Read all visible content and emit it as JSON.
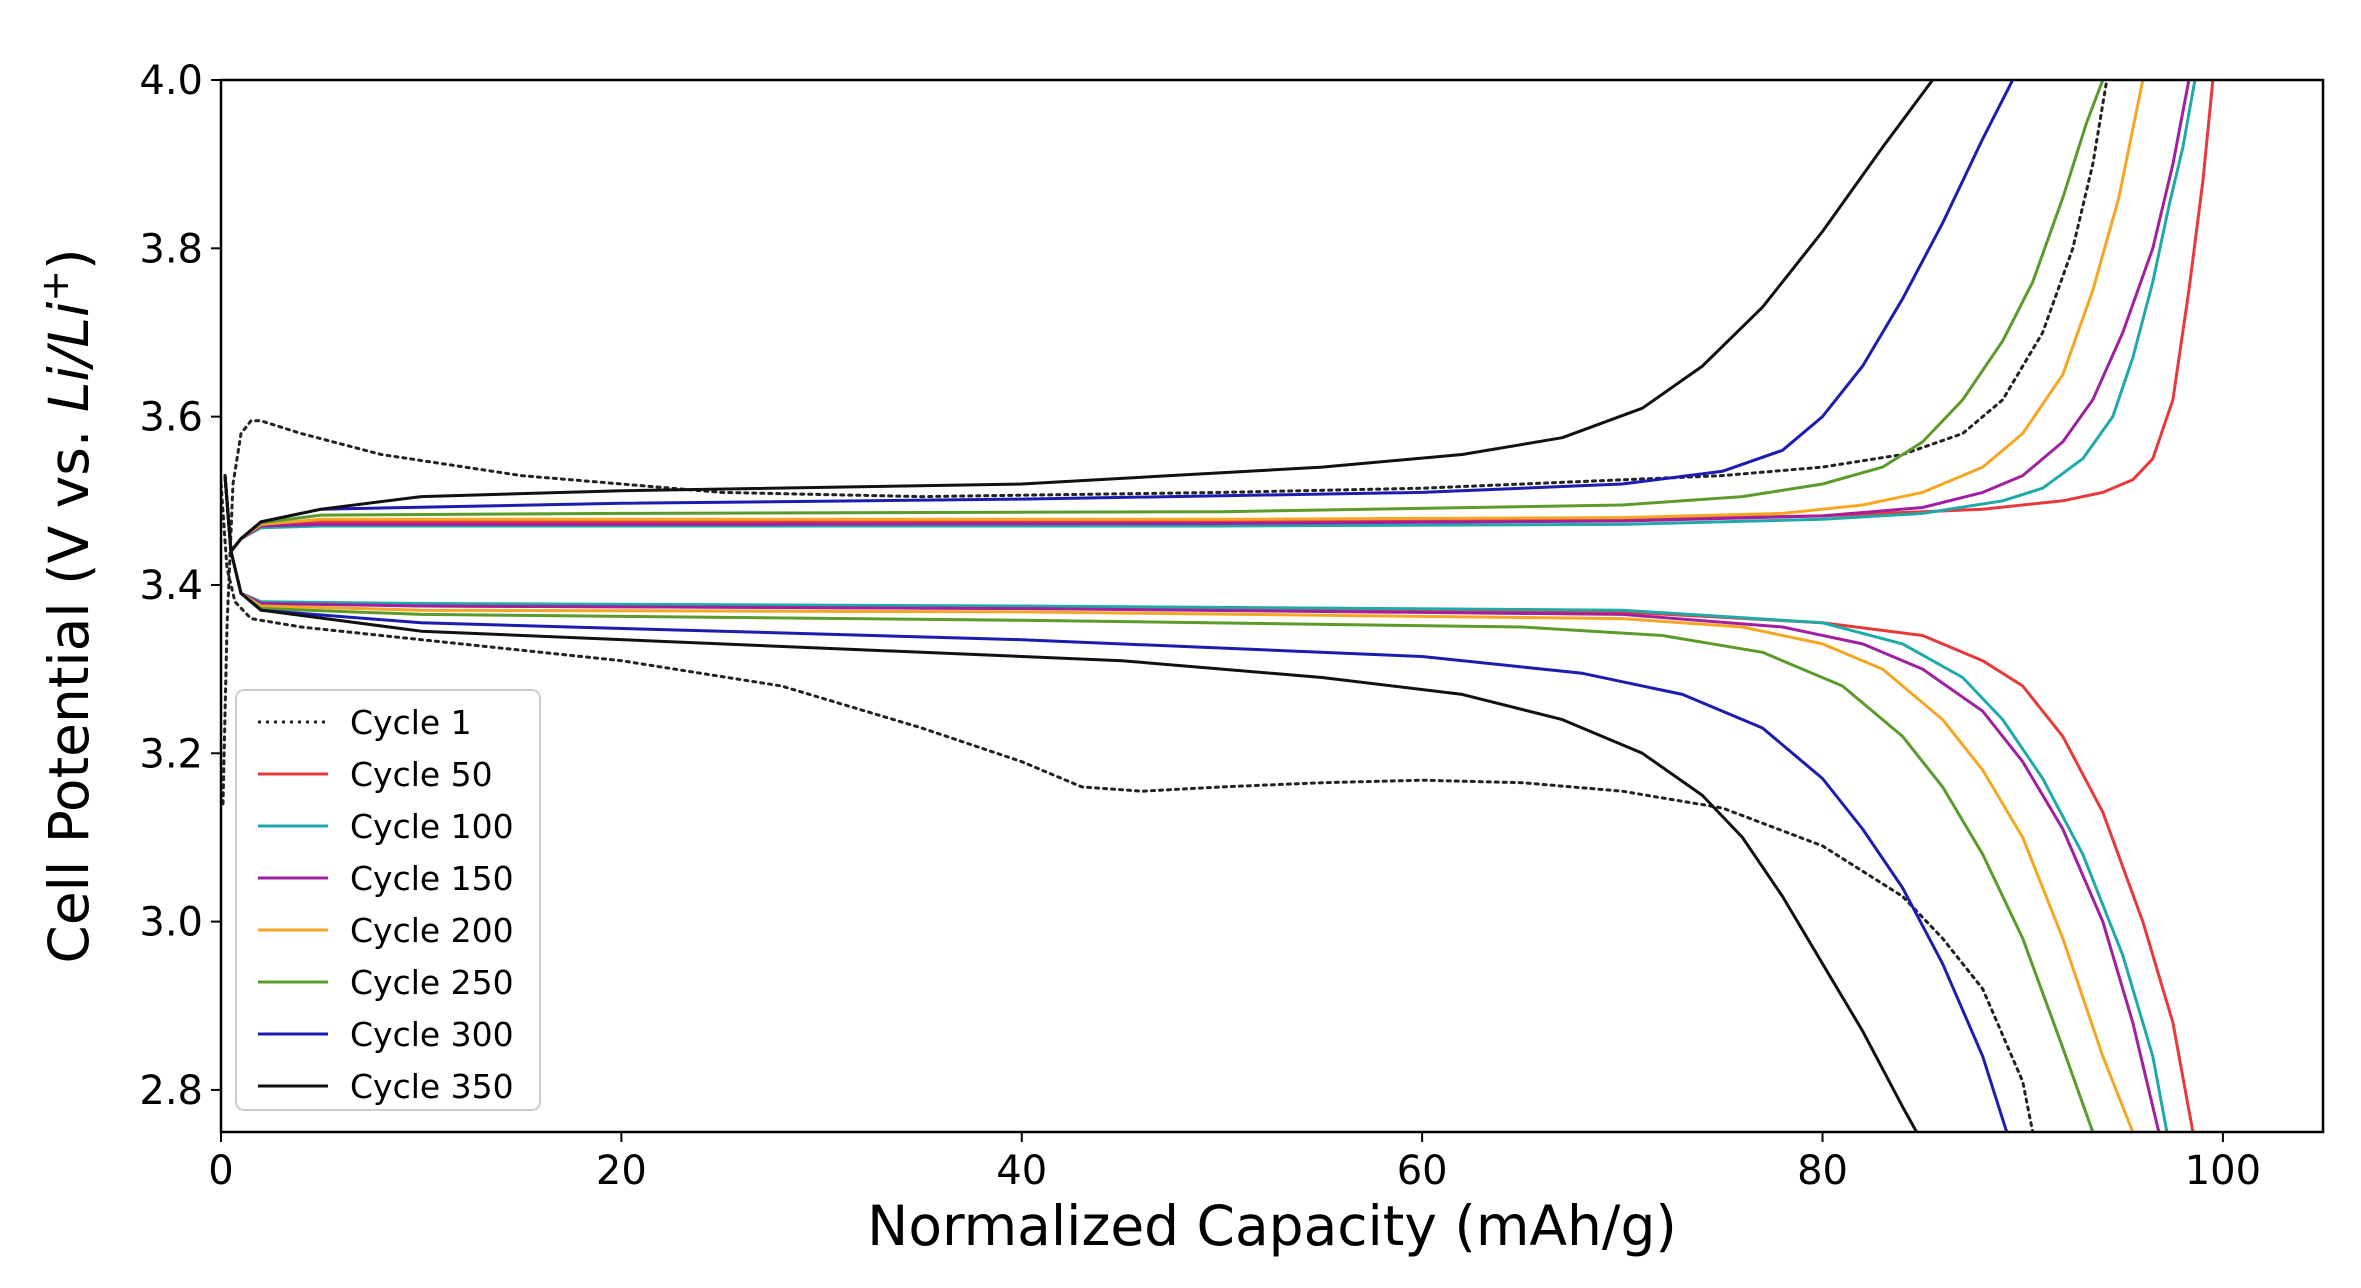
{
  "chart_data": {
    "type": "line",
    "title": "",
    "xlabel": "Normalized Capacity (mAh/g)",
    "ylabel_parts": [
      "Cell Potential (V vs. ",
      "Li/Li",
      "+",
      ")"
    ],
    "xlim": [
      0,
      105
    ],
    "ylim": [
      2.75,
      4.0
    ],
    "xticks": [
      0,
      20,
      40,
      60,
      80,
      100
    ],
    "yticks": [
      2.8,
      3.0,
      3.2,
      3.4,
      3.6,
      3.8,
      4.0
    ],
    "xtick_labels": [
      "0",
      "20",
      "40",
      "60",
      "80",
      "100"
    ],
    "ytick_labels": [
      "2.8",
      "3.0",
      "3.2",
      "3.4",
      "3.6",
      "3.8",
      "4.0"
    ],
    "grid": false,
    "legend_position": "lower-left",
    "series": [
      {
        "name": "Cycle 1",
        "color": "#222222",
        "dash": "dotted",
        "charge": [
          [
            0.1,
            3.14
          ],
          [
            0.3,
            3.35
          ],
          [
            0.6,
            3.52
          ],
          [
            1,
            3.58
          ],
          [
            1.5,
            3.595
          ],
          [
            2,
            3.595
          ],
          [
            4,
            3.58
          ],
          [
            8,
            3.555
          ],
          [
            15,
            3.53
          ],
          [
            25,
            3.51
          ],
          [
            35,
            3.505
          ],
          [
            50,
            3.51
          ],
          [
            60,
            3.515
          ],
          [
            70,
            3.525
          ],
          [
            75,
            3.53
          ],
          [
            80,
            3.54
          ],
          [
            84,
            3.555
          ],
          [
            87,
            3.58
          ],
          [
            89,
            3.62
          ],
          [
            91,
            3.7
          ],
          [
            92.5,
            3.8
          ],
          [
            93.5,
            3.9
          ],
          [
            94.2,
            4.0
          ]
        ],
        "discharge": [
          [
            0,
            3.52
          ],
          [
            0.3,
            3.42
          ],
          [
            0.7,
            3.38
          ],
          [
            1.5,
            3.36
          ],
          [
            4,
            3.35
          ],
          [
            10,
            3.335
          ],
          [
            20,
            3.31
          ],
          [
            28,
            3.28
          ],
          [
            35,
            3.23
          ],
          [
            40,
            3.19
          ],
          [
            43,
            3.16
          ],
          [
            46,
            3.155
          ],
          [
            50,
            3.16
          ],
          [
            55,
            3.165
          ],
          [
            60,
            3.168
          ],
          [
            65,
            3.165
          ],
          [
            70,
            3.155
          ],
          [
            75,
            3.135
          ],
          [
            80,
            3.09
          ],
          [
            84,
            3.03
          ],
          [
            86,
            2.98
          ],
          [
            88,
            2.92
          ],
          [
            90,
            2.81
          ],
          [
            90.5,
            2.75
          ]
        ]
      },
      {
        "name": "Cycle 50",
        "color": "#e8393b",
        "dash": "solid",
        "charge": [
          [
            0.2,
            3.53
          ],
          [
            0.5,
            3.44
          ],
          [
            1,
            3.455
          ],
          [
            2,
            3.47
          ],
          [
            5,
            3.475
          ],
          [
            20,
            3.475
          ],
          [
            50,
            3.475
          ],
          [
            70,
            3.478
          ],
          [
            80,
            3.482
          ],
          [
            88,
            3.49
          ],
          [
            92,
            3.5
          ],
          [
            94,
            3.51
          ],
          [
            95.5,
            3.525
          ],
          [
            96.5,
            3.55
          ],
          [
            97.5,
            3.62
          ],
          [
            98.3,
            3.75
          ],
          [
            99,
            3.88
          ],
          [
            99.5,
            4.0
          ]
        ],
        "discharge": [
          [
            0.2,
            3.53
          ],
          [
            0.5,
            3.44
          ],
          [
            1,
            3.39
          ],
          [
            2,
            3.38
          ],
          [
            10,
            3.375
          ],
          [
            40,
            3.372
          ],
          [
            70,
            3.368
          ],
          [
            80,
            3.355
          ],
          [
            85,
            3.34
          ],
          [
            88,
            3.31
          ],
          [
            90,
            3.28
          ],
          [
            92,
            3.22
          ],
          [
            94,
            3.13
          ],
          [
            96,
            3.0
          ],
          [
            97.5,
            2.88
          ],
          [
            98.5,
            2.75
          ]
        ]
      },
      {
        "name": "Cycle 100",
        "color": "#1fa9a9",
        "dash": "solid",
        "charge": [
          [
            0.2,
            3.53
          ],
          [
            0.5,
            3.44
          ],
          [
            1,
            3.455
          ],
          [
            2,
            3.468
          ],
          [
            5,
            3.47
          ],
          [
            20,
            3.47
          ],
          [
            50,
            3.47
          ],
          [
            70,
            3.472
          ],
          [
            80,
            3.478
          ],
          [
            85,
            3.485
          ],
          [
            89,
            3.5
          ],
          [
            91,
            3.515
          ],
          [
            93,
            3.55
          ],
          [
            94.5,
            3.6
          ],
          [
            95.5,
            3.67
          ],
          [
            96.5,
            3.76
          ],
          [
            97.3,
            3.85
          ],
          [
            98,
            3.92
          ],
          [
            98.6,
            4.0
          ]
        ],
        "discharge": [
          [
            0.2,
            3.53
          ],
          [
            0.5,
            3.44
          ],
          [
            1,
            3.39
          ],
          [
            2,
            3.38
          ],
          [
            10,
            3.378
          ],
          [
            40,
            3.375
          ],
          [
            70,
            3.37
          ],
          [
            80,
            3.355
          ],
          [
            84,
            3.33
          ],
          [
            87,
            3.29
          ],
          [
            89,
            3.24
          ],
          [
            91,
            3.17
          ],
          [
            93,
            3.08
          ],
          [
            95,
            2.96
          ],
          [
            96.5,
            2.84
          ],
          [
            97.2,
            2.75
          ]
        ]
      },
      {
        "name": "Cycle 150",
        "color": "#a020a0",
        "dash": "solid",
        "charge": [
          [
            0.2,
            3.53
          ],
          [
            0.5,
            3.44
          ],
          [
            1,
            3.455
          ],
          [
            2,
            3.47
          ],
          [
            5,
            3.472
          ],
          [
            20,
            3.472
          ],
          [
            50,
            3.473
          ],
          [
            70,
            3.476
          ],
          [
            80,
            3.482
          ],
          [
            85,
            3.492
          ],
          [
            88,
            3.51
          ],
          [
            90,
            3.53
          ],
          [
            92,
            3.57
          ],
          [
            93.5,
            3.62
          ],
          [
            95,
            3.7
          ],
          [
            96.5,
            3.8
          ],
          [
            97.5,
            3.9
          ],
          [
            98.3,
            4.0
          ]
        ],
        "discharge": [
          [
            0.2,
            3.53
          ],
          [
            0.5,
            3.44
          ],
          [
            1,
            3.39
          ],
          [
            2,
            3.378
          ],
          [
            10,
            3.375
          ],
          [
            40,
            3.372
          ],
          [
            70,
            3.365
          ],
          [
            78,
            3.35
          ],
          [
            82,
            3.33
          ],
          [
            85,
            3.3
          ],
          [
            88,
            3.25
          ],
          [
            90,
            3.19
          ],
          [
            92,
            3.11
          ],
          [
            94,
            3.0
          ],
          [
            95.5,
            2.88
          ],
          [
            96.8,
            2.75
          ]
        ]
      },
      {
        "name": "Cycle 200",
        "color": "#f5a623",
        "dash": "solid",
        "charge": [
          [
            0.2,
            3.53
          ],
          [
            0.5,
            3.44
          ],
          [
            1,
            3.455
          ],
          [
            2,
            3.472
          ],
          [
            5,
            3.478
          ],
          [
            20,
            3.478
          ],
          [
            50,
            3.478
          ],
          [
            70,
            3.48
          ],
          [
            78,
            3.485
          ],
          [
            82,
            3.495
          ],
          [
            85,
            3.51
          ],
          [
            88,
            3.54
          ],
          [
            90,
            3.58
          ],
          [
            92,
            3.65
          ],
          [
            93.5,
            3.75
          ],
          [
            94.8,
            3.86
          ],
          [
            96,
            4.0
          ]
        ],
        "discharge": [
          [
            0.2,
            3.53
          ],
          [
            0.5,
            3.44
          ],
          [
            1,
            3.39
          ],
          [
            2,
            3.375
          ],
          [
            10,
            3.37
          ],
          [
            40,
            3.368
          ],
          [
            70,
            3.36
          ],
          [
            76,
            3.35
          ],
          [
            80,
            3.33
          ],
          [
            83,
            3.3
          ],
          [
            86,
            3.24
          ],
          [
            88,
            3.18
          ],
          [
            90,
            3.1
          ],
          [
            92,
            2.98
          ],
          [
            94,
            2.84
          ],
          [
            95.5,
            2.75
          ]
        ]
      },
      {
        "name": "Cycle 250",
        "color": "#5a9b2b",
        "dash": "solid",
        "charge": [
          [
            0.2,
            3.53
          ],
          [
            0.5,
            3.44
          ],
          [
            1,
            3.455
          ],
          [
            2,
            3.474
          ],
          [
            5,
            3.483
          ],
          [
            20,
            3.485
          ],
          [
            50,
            3.487
          ],
          [
            70,
            3.495
          ],
          [
            76,
            3.505
          ],
          [
            80,
            3.52
          ],
          [
            83,
            3.54
          ],
          [
            85,
            3.57
          ],
          [
            87,
            3.62
          ],
          [
            89,
            3.69
          ],
          [
            90.5,
            3.76
          ],
          [
            92,
            3.86
          ],
          [
            93.2,
            3.95
          ],
          [
            94,
            4.0
          ]
        ],
        "discharge": [
          [
            0.2,
            3.53
          ],
          [
            0.5,
            3.44
          ],
          [
            1,
            3.39
          ],
          [
            2,
            3.372
          ],
          [
            10,
            3.365
          ],
          [
            40,
            3.358
          ],
          [
            65,
            3.35
          ],
          [
            72,
            3.34
          ],
          [
            77,
            3.32
          ],
          [
            81,
            3.28
          ],
          [
            84,
            3.22
          ],
          [
            86,
            3.16
          ],
          [
            88,
            3.08
          ],
          [
            90,
            2.98
          ],
          [
            92,
            2.85
          ],
          [
            93.5,
            2.75
          ]
        ]
      },
      {
        "name": "Cycle 300",
        "color": "#1c1cb0",
        "dash": "solid",
        "charge": [
          [
            0.2,
            3.53
          ],
          [
            0.5,
            3.44
          ],
          [
            1,
            3.455
          ],
          [
            2,
            3.475
          ],
          [
            5,
            3.49
          ],
          [
            20,
            3.497
          ],
          [
            40,
            3.502
          ],
          [
            60,
            3.51
          ],
          [
            70,
            3.52
          ],
          [
            75,
            3.535
          ],
          [
            78,
            3.56
          ],
          [
            80,
            3.6
          ],
          [
            82,
            3.66
          ],
          [
            84,
            3.74
          ],
          [
            86,
            3.83
          ],
          [
            88,
            3.93
          ],
          [
            89.5,
            4.0
          ]
        ],
        "discharge": [
          [
            0.2,
            3.53
          ],
          [
            0.5,
            3.44
          ],
          [
            1,
            3.39
          ],
          [
            2,
            3.37
          ],
          [
            10,
            3.355
          ],
          [
            40,
            3.335
          ],
          [
            60,
            3.315
          ],
          [
            68,
            3.295
          ],
          [
            73,
            3.27
          ],
          [
            77,
            3.23
          ],
          [
            80,
            3.17
          ],
          [
            82,
            3.11
          ],
          [
            84,
            3.04
          ],
          [
            86,
            2.95
          ],
          [
            88,
            2.84
          ],
          [
            89.2,
            2.75
          ]
        ]
      },
      {
        "name": "Cycle 350",
        "color": "#111111",
        "dash": "solid",
        "charge": [
          [
            0.2,
            3.53
          ],
          [
            0.5,
            3.44
          ],
          [
            1,
            3.455
          ],
          [
            2,
            3.475
          ],
          [
            5,
            3.49
          ],
          [
            10,
            3.505
          ],
          [
            20,
            3.512
          ],
          [
            40,
            3.52
          ],
          [
            55,
            3.54
          ],
          [
            62,
            3.555
          ],
          [
            67,
            3.575
          ],
          [
            71,
            3.61
          ],
          [
            74,
            3.66
          ],
          [
            77,
            3.73
          ],
          [
            80,
            3.82
          ],
          [
            83,
            3.92
          ],
          [
            85.5,
            4.0
          ]
        ],
        "discharge": [
          [
            0.2,
            3.53
          ],
          [
            0.5,
            3.44
          ],
          [
            1,
            3.39
          ],
          [
            2,
            3.37
          ],
          [
            10,
            3.345
          ],
          [
            30,
            3.325
          ],
          [
            45,
            3.31
          ],
          [
            55,
            3.29
          ],
          [
            62,
            3.27
          ],
          [
            67,
            3.24
          ],
          [
            71,
            3.2
          ],
          [
            74,
            3.15
          ],
          [
            76,
            3.1
          ],
          [
            78,
            3.03
          ],
          [
            80,
            2.95
          ],
          [
            82,
            2.87
          ],
          [
            84,
            2.78
          ],
          [
            84.7,
            2.75
          ]
        ]
      }
    ]
  }
}
